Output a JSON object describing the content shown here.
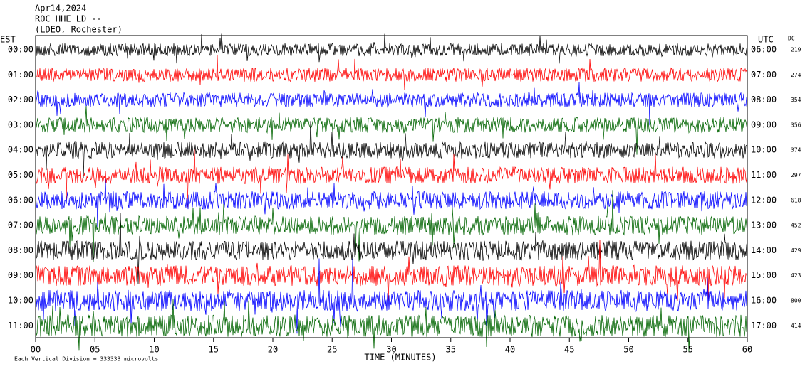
{
  "chart_data": {
    "type": "helicorder",
    "title_lines": [
      "Apr14,2024",
      "ROC HHE LD --",
      "(LDEO, Rochester)"
    ],
    "left_axis_title": "EST",
    "right_axis_title": "UTC",
    "dc_title": "DC",
    "left_labels": [
      "00:00",
      "01:00",
      "02:00",
      "03:00",
      "04:00",
      "05:00",
      "06:00",
      "07:00",
      "08:00",
      "09:00",
      "10:00",
      "11:00"
    ],
    "right_labels": [
      "06:00",
      "07:00",
      "08:00",
      "09:00",
      "10:00",
      "11:00",
      "12:00",
      "13:00",
      "14:00",
      "15:00",
      "16:00",
      "17:00"
    ],
    "dc_values": [
      219,
      274,
      354,
      356,
      374,
      297,
      618,
      452,
      429,
      423,
      800,
      414
    ],
    "trace_colors": [
      "#000000",
      "#ff0000",
      "#0000ff",
      "#006400"
    ],
    "xlabel": "TIME (MINUTES)",
    "xlim": [
      0,
      60
    ],
    "xticks": [
      {
        "value": 0,
        "label": "00"
      },
      {
        "value": 5,
        "label": "05"
      },
      10,
      15,
      20,
      25,
      30,
      35,
      40,
      45,
      50,
      55,
      60
    ],
    "footer": "Each Vertical Division =  333333 microvolts"
  }
}
